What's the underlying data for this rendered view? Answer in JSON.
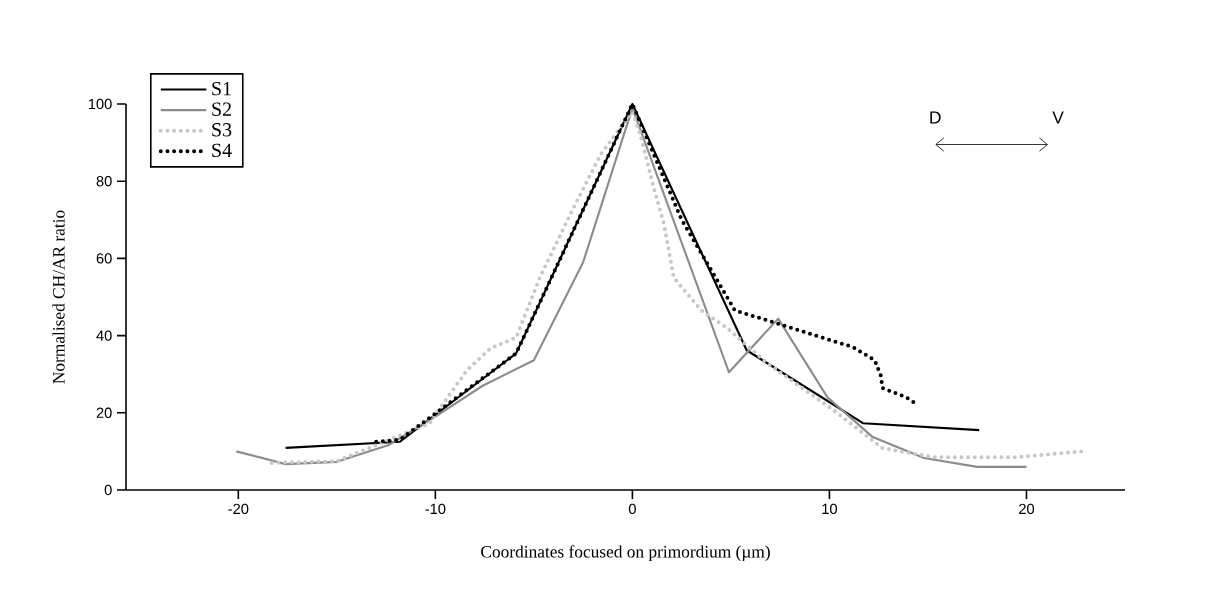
{
  "chart_data": {
    "type": "line",
    "xlabel": "Coordinates focused on primordium (µm)",
    "ylabel": "Normalised CH/AR ratio",
    "xlim": [
      -25.7,
      25
    ],
    "ylim": [
      0,
      100
    ],
    "xticks": [
      -20,
      -10,
      0,
      10,
      20
    ],
    "yticks": [
      0,
      20,
      40,
      60,
      80,
      100
    ],
    "legend": "top left",
    "grid": false,
    "marker": "none",
    "annotations": [
      "D",
      "V"
    ],
    "series": [
      {
        "name": "S1",
        "color": "#000000",
        "line_style": "solid",
        "x": [
          -17.6,
          -11.8,
          -5.9,
          0,
          5.8,
          11.7,
          17.6
        ],
        "values": [
          10.9,
          12.5,
          35.4,
          100,
          36.2,
          17.3,
          15.5
        ]
      },
      {
        "name": "S2",
        "color": "#8c8c8c",
        "line_style": "solid",
        "x": [
          -20.1,
          -17.6,
          -15,
          -12.4,
          -10,
          -7.6,
          -5,
          -2.5,
          0,
          4.9,
          7.4,
          9.9,
          12.2,
          14.8,
          17.5,
          20
        ],
        "values": [
          10,
          6.7,
          7.3,
          11.6,
          19,
          27,
          33.6,
          59,
          99,
          30.5,
          44.4,
          24,
          13.7,
          8.3,
          6,
          6
        ]
      },
      {
        "name": "S3",
        "color": "#c8c8c8",
        "line_style": "dotted",
        "x": [
          -18.3,
          -15,
          -12.8,
          -10.3,
          -8.4,
          -7.2,
          -5.9,
          -4.7,
          -3,
          -1.6,
          0,
          0.4,
          1.1,
          1.6,
          2.1,
          3.5,
          4.8,
          6.8,
          10.2,
          12.7,
          15.3,
          19.5,
          22.8
        ],
        "values": [
          7,
          7.5,
          12,
          17.3,
          31,
          36.7,
          39.5,
          55,
          73,
          87,
          98,
          92,
          78,
          69,
          55,
          46.5,
          42,
          33,
          20.7,
          10.8,
          8.5,
          8.5,
          10
        ]
      },
      {
        "name": "S4",
        "color": "#000000",
        "line_style": "dotted",
        "x": [
          -13,
          -11.8,
          -5.9,
          0,
          2.5,
          5.2,
          7.2,
          11.2,
          12.3,
          12.6,
          12.7,
          13.9,
          14.5
        ],
        "values": [
          12.5,
          13,
          35.4,
          100,
          70,
          46.5,
          43.4,
          37,
          33.6,
          29.7,
          26.4,
          24,
          22
        ]
      }
    ]
  }
}
